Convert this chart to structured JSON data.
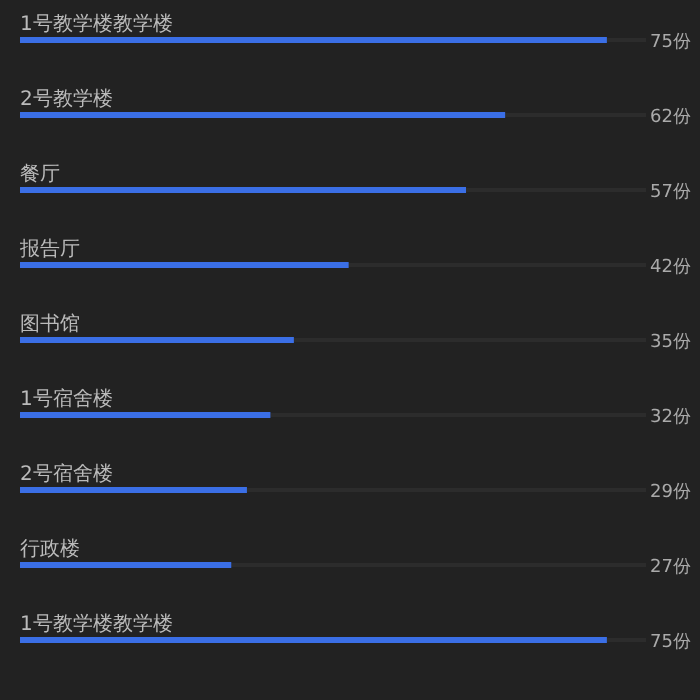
{
  "chart_data": {
    "type": "bar",
    "orientation": "horizontal",
    "categories": [
      "1号教学楼教学楼",
      "2号教学楼",
      "餐厅",
      "报告厅",
      "图书馆",
      "1号宿舍楼",
      "2号宿舍楼",
      "行政楼",
      "1号教学楼教学楼"
    ],
    "values": [
      75,
      62,
      57,
      42,
      35,
      32,
      29,
      27,
      75
    ],
    "value_labels": [
      "75份",
      "62份",
      "57份",
      "42份",
      "35份",
      "32份",
      "29份",
      "27份",
      "75份"
    ],
    "color": "#3b6fe6",
    "xlim": [
      0,
      80
    ],
    "tick_labels": false
  }
}
